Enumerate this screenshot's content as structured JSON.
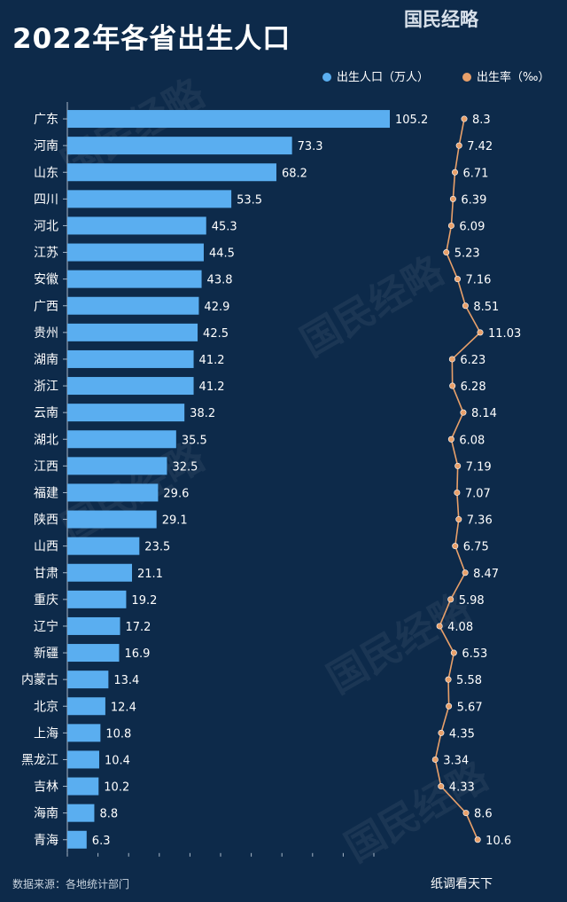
{
  "title": "2022年各省出生人口",
  "brand": "国民经略",
  "footer_mark": "纸调看天下",
  "source": "数据来源：各地统计部门",
  "colors": {
    "bar": "#5aaef0",
    "line": "#e8a06a",
    "background": "#0d2a4a",
    "text": "#ffffff"
  },
  "chart_data": {
    "type": "bar",
    "orientation": "horizontal",
    "categories": [
      "广东",
      "河南",
      "山东",
      "四川",
      "河北",
      "江苏",
      "安徽",
      "广西",
      "贵州",
      "湖南",
      "浙江",
      "云南",
      "湖北",
      "江西",
      "福建",
      "陕西",
      "山西",
      "甘肃",
      "重庆",
      "辽宁",
      "新疆",
      "内蒙古",
      "北京",
      "上海",
      "黑龙江",
      "吉林",
      "海南",
      "青海"
    ],
    "series": [
      {
        "name": "出生人口（万人）",
        "type": "bar",
        "values": [
          105.2,
          73.3,
          68.2,
          53.5,
          45.3,
          44.5,
          43.8,
          42.9,
          42.5,
          41.2,
          41.2,
          38.2,
          35.5,
          32.5,
          29.6,
          29.1,
          23.5,
          21.1,
          19.2,
          17.2,
          16.9,
          13.4,
          12.4,
          10.8,
          10.4,
          10.2,
          8.8,
          6.3
        ]
      },
      {
        "name": "出生率（‰）",
        "type": "line",
        "values": [
          8.3,
          7.42,
          6.71,
          6.39,
          6.09,
          5.23,
          7.16,
          8.51,
          11.03,
          6.23,
          6.28,
          8.14,
          6.08,
          7.19,
          7.07,
          7.36,
          6.75,
          8.47,
          5.98,
          4.08,
          6.53,
          5.58,
          5.67,
          4.35,
          3.34,
          4.33,
          8.6,
          10.6
        ]
      }
    ],
    "legend_position": "top-right"
  }
}
